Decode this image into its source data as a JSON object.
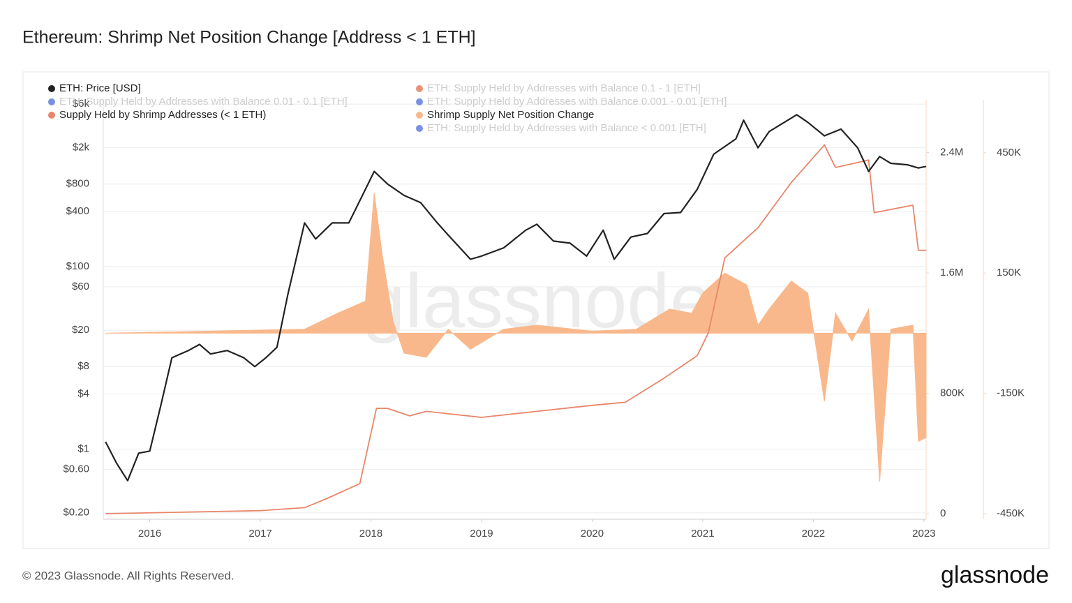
{
  "chart_data": {
    "type": "line",
    "title": "Ethereum: Shrimp Net Position Change [Address < 1 ETH]",
    "footer": "© 2023 Glassnode. All Rights Reserved.",
    "logo": "glassnode",
    "watermark": "glassnode",
    "xlim": [
      2015.58,
      2023.02
    ],
    "xticks": [
      2016,
      2017,
      2018,
      2019,
      2020,
      2021,
      2022,
      2023
    ],
    "ylim": [
      0.17,
      6700
    ],
    "log_scale": true,
    "grid": true,
    "yticks": [
      {
        "value": 0.2,
        "label": "$0.20"
      },
      {
        "value": 0.6,
        "label": "$0.60"
      },
      {
        "value": 1,
        "label": "$1"
      },
      {
        "value": 4,
        "label": "$4"
      },
      {
        "value": 8,
        "label": "$8"
      },
      {
        "value": 20,
        "label": "$20"
      },
      {
        "value": 60,
        "label": "$60"
      },
      {
        "value": 100,
        "label": "$100"
      },
      {
        "value": 400,
        "label": "$400"
      },
      {
        "value": 800,
        "label": "$800"
      },
      {
        "value": 2000,
        "label": "$2k"
      },
      {
        "value": 6000,
        "label": "$6k"
      }
    ],
    "y2lim": [
      -37000,
      2750000
    ],
    "y2ticks": [
      0,
      {
        "value": 800000,
        "label": "800K"
      },
      {
        "value": 1600000,
        "label": "1.6M"
      },
      {
        "value": 2400000,
        "label": "2.4M"
      }
    ],
    "y3lim": [
      -464000,
      582000
    ],
    "y3ticks": [
      {
        "value": -450000,
        "label": "-450K"
      },
      {
        "value": -150000,
        "label": "-150K"
      },
      {
        "value": 150000,
        "label": "150K"
      },
      {
        "value": 450000,
        "label": "450K"
      }
    ],
    "series": [
      {
        "name": "ETH: Price [USD]",
        "color": "#222222",
        "axis": "y",
        "kind": "line",
        "x": [
          2015.6,
          2015.7,
          2015.8,
          2015.9,
          2016.0,
          2016.1,
          2016.2,
          2016.35,
          2016.45,
          2016.55,
          2016.7,
          2016.85,
          2016.95,
          2017.05,
          2017.15,
          2017.25,
          2017.4,
          2017.5,
          2017.65,
          2017.8,
          2017.95,
          2018.03,
          2018.15,
          2018.3,
          2018.45,
          2018.6,
          2018.7,
          2018.9,
          2019.0,
          2019.2,
          2019.4,
          2019.5,
          2019.65,
          2019.8,
          2019.95,
          2020.1,
          2020.2,
          2020.35,
          2020.5,
          2020.65,
          2020.8,
          2020.95,
          2021.1,
          2021.3,
          2021.37,
          2021.5,
          2021.6,
          2021.85,
          2021.95,
          2022.1,
          2022.25,
          2022.4,
          2022.5,
          2022.6,
          2022.7,
          2022.85,
          2022.95,
          2023.02
        ],
        "values": [
          1.2,
          0.7,
          0.45,
          0.9,
          0.95,
          3,
          10,
          12,
          14,
          11,
          12,
          10,
          8,
          10,
          13,
          50,
          300,
          200,
          300,
          300,
          700,
          1100,
          800,
          600,
          500,
          300,
          220,
          120,
          130,
          160,
          250,
          290,
          190,
          180,
          130,
          250,
          120,
          210,
          230,
          380,
          390,
          700,
          1700,
          2500,
          4000,
          2000,
          3000,
          4600,
          3800,
          2700,
          3200,
          2000,
          1100,
          1600,
          1350,
          1300,
          1200,
          1250
        ]
      },
      {
        "name": "Supply Held by Shrimp Addresses (< 1 ETH)",
        "color": "#e8866a",
        "axis": "y2",
        "kind": "line",
        "x": [
          2015.6,
          2017.0,
          2017.4,
          2017.6,
          2017.9,
          2018.05,
          2018.15,
          2018.35,
          2018.5,
          2019.0,
          2019.5,
          2020.0,
          2020.3,
          2020.65,
          2020.95,
          2021.05,
          2021.2,
          2021.5,
          2021.8,
          2022.1,
          2022.2,
          2022.5,
          2022.55,
          2022.9,
          2022.95,
          2023.02
        ],
        "values": [
          0,
          20000,
          40000,
          100000,
          200000,
          700000,
          700000,
          650000,
          680000,
          640000,
          680000,
          720000,
          740000,
          900000,
          1050000,
          1200000,
          1700000,
          1900000,
          2200000,
          2450000,
          2300000,
          2350000,
          2000000,
          2050000,
          1750000,
          1750000
        ]
      },
      {
        "name": "Shrimp Supply Net Position Change",
        "color": "#f9b88b",
        "axis": "y3",
        "kind": "area",
        "x": [
          2015.6,
          2017.4,
          2017.7,
          2017.95,
          2018.03,
          2018.1,
          2018.2,
          2018.3,
          2018.5,
          2018.7,
          2018.9,
          2019.2,
          2019.5,
          2020.0,
          2020.4,
          2020.7,
          2020.9,
          2021.0,
          2021.2,
          2021.4,
          2021.5,
          2021.6,
          2021.8,
          2021.95,
          2022.1,
          2022.2,
          2022.35,
          2022.5,
          2022.6,
          2022.7,
          2022.9,
          2022.95,
          2023.02
        ],
        "values": [
          0,
          10000,
          50000,
          80000,
          350000,
          200000,
          30000,
          -50000,
          -60000,
          10000,
          -40000,
          10000,
          20000,
          5000,
          10000,
          60000,
          50000,
          100000,
          150000,
          120000,
          20000,
          60000,
          130000,
          100000,
          -170000,
          50000,
          -20000,
          60000,
          -370000,
          10000,
          20000,
          -270000,
          -260000
        ]
      }
    ],
    "hidden_series": [
      {
        "name": "ETH: Supply Held by Addresses with Balance 0.01 - 0.1 [ETH]",
        "color": "#6a85e0"
      },
      {
        "name": "ETH: Supply Held by Addresses with Balance 0.1 - 1 [ETH]",
        "color": "#e8866a"
      },
      {
        "name": "ETH: Supply Held by Addresses with Balance 0.001 - 0.01 [ETH]",
        "color": "#6a85e0"
      },
      {
        "name": "ETH: Supply Held by Addresses with Balance < 0.001 [ETH]",
        "color": "#6a85e0"
      }
    ]
  }
}
